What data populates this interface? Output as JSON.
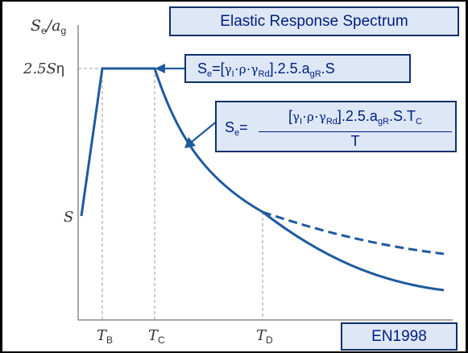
{
  "title": "Elastic Response Spectrum",
  "standard": "EN1998",
  "y_axis_label": {
    "main": "S",
    "sub1": "e",
    "slash": "/",
    "main2": "a",
    "sub2": "g"
  },
  "y_ticks": {
    "plateau": {
      "prefix": "2.5",
      "symbol": "S",
      "suffix": "η"
    },
    "start": "S"
  },
  "x_ticks": [
    {
      "main": "T",
      "sub": "B"
    },
    {
      "main": "T",
      "sub": "C"
    },
    {
      "main": "T",
      "sub": "D"
    }
  ],
  "formula_plateau": {
    "lhs": "S",
    "lhs_sub": "e",
    "eq": "=",
    "open": "[",
    "g1": "γ",
    "g1_sub": "I",
    "dot1": "·",
    "rho": "ρ",
    "dot2": "·",
    "g2": "γ",
    "g2_sub": "Rd",
    "rest": "].2.5.a",
    "agr_sub": "gR",
    "tail": ".S"
  },
  "formula_descending": {
    "lhs": "S",
    "lhs_sub": "e",
    "eq": "=",
    "open": "[",
    "g1": "γ",
    "g1_sub": "I",
    "dot1": "·",
    "rho": "ρ",
    "dot2": "·",
    "g2": "γ",
    "g2_sub": "Rd",
    "rest": "].2.5.a",
    "agr_sub": "gR",
    "tail": ".S.T",
    "tc_sub": "C",
    "denominator": "T"
  },
  "colors": {
    "curve": "#1f5a9e",
    "box_fill": "#dde7f6",
    "box_border": "#10306a",
    "box_text": "#001c80",
    "guide": "#999999",
    "axis": "#888888"
  }
}
